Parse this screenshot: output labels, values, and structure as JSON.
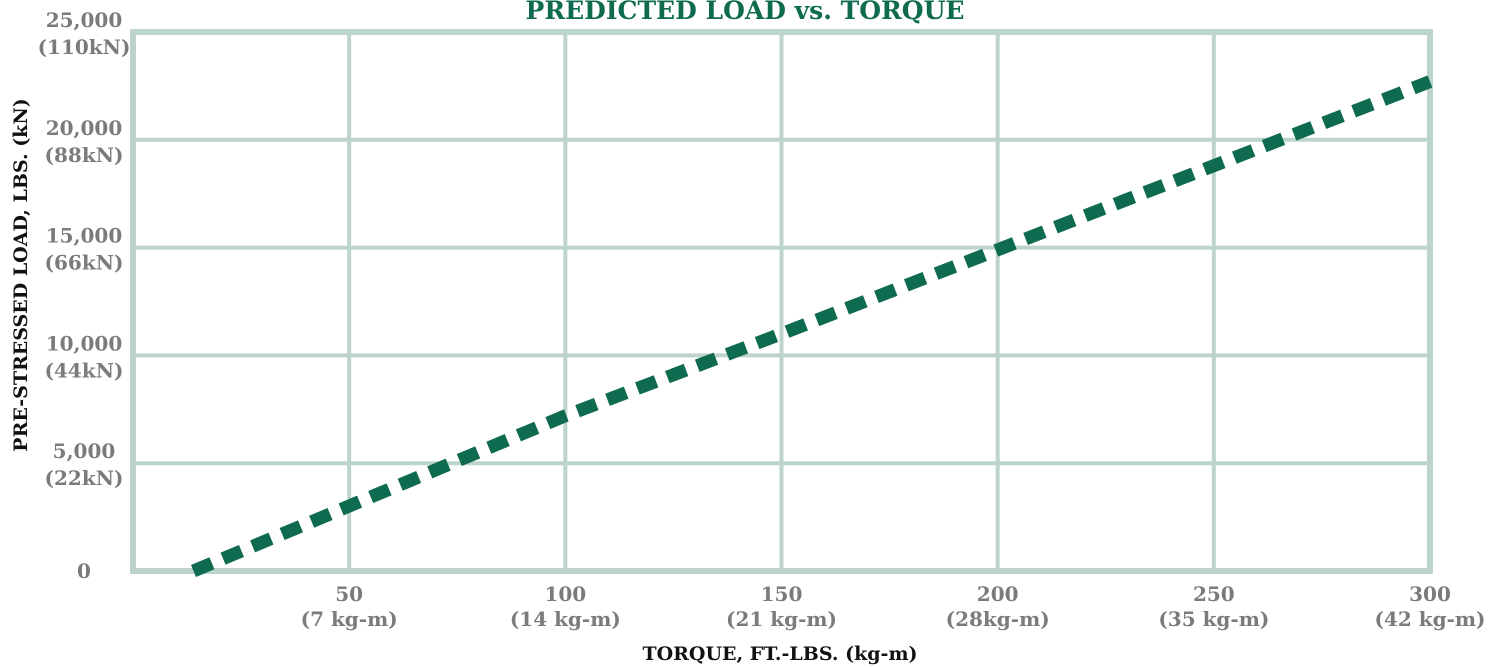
{
  "chart_data": {
    "type": "line",
    "title": "PREDICTED LOAD vs. TORQUE",
    "xlabel": "TORQUE, FT.-LBS. (kg-m)",
    "ylabel": "PRE-STRESSED LOAD, LBS. (kN)",
    "xlim": [
      0,
      300
    ],
    "ylim": [
      0,
      25000
    ],
    "grid": true,
    "x_ticks": [
      {
        "value": 50,
        "label": "50",
        "sublabel": "(7 kg-m)"
      },
      {
        "value": 100,
        "label": "100",
        "sublabel": "(14 kg-m)"
      },
      {
        "value": 150,
        "label": "150",
        "sublabel": "(21 kg-m)"
      },
      {
        "value": 200,
        "label": "200",
        "sublabel": "(28kg-m)"
      },
      {
        "value": 250,
        "label": "250",
        "sublabel": "(35 kg-m)"
      },
      {
        "value": 300,
        "label": "300",
        "sublabel": "(42 kg-m)"
      }
    ],
    "y_ticks": [
      {
        "value": 0,
        "label": "0",
        "sublabel": ""
      },
      {
        "value": 5000,
        "label": "5,000",
        "sublabel": "(22kN)"
      },
      {
        "value": 10000,
        "label": "10,000",
        "sublabel": "(44kN)"
      },
      {
        "value": 15000,
        "label": "15,000",
        "sublabel": "(66kN)"
      },
      {
        "value": 20000,
        "label": "20,000",
        "sublabel": "(88kN)"
      },
      {
        "value": 25000,
        "label": "25,000",
        "sublabel": "(110kN)"
      }
    ],
    "series": [
      {
        "x": [
          14,
          100,
          150,
          200,
          300
        ],
        "y": [
          0,
          7200,
          11000,
          14900,
          22700
        ]
      }
    ],
    "colors": {
      "title": "#0f6b50",
      "line": "#0f6b50",
      "grid": "#bdd4cb",
      "text": "#7b7b7b",
      "axis_label": "#111111"
    }
  }
}
